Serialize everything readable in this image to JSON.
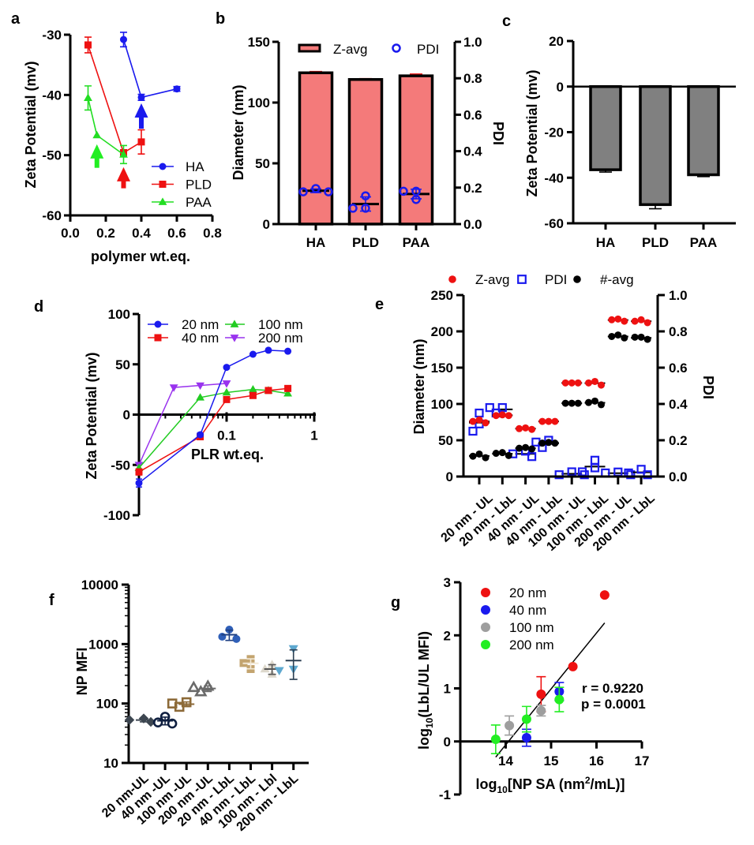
{
  "chart_data": [
    {
      "panel": "a",
      "type": "line",
      "title": "",
      "xlabel": "polymer wt.eq.",
      "ylabel": "Zeta Potential (mv)",
      "xlim": [
        0,
        0.8
      ],
      "ylim": [
        -60,
        -30
      ],
      "xticks": [
        0,
        0.2,
        0.4,
        0.6,
        0.8
      ],
      "xtick_labels": [
        "0.0",
        "0.2",
        "0.4",
        "0.6",
        "0.8"
      ],
      "yticks": [
        -30,
        -40,
        -50,
        -60
      ],
      "ytick_labels": [
        "-30",
        "-40",
        "-50",
        "-60"
      ],
      "grid": false,
      "legend_position": "bottom-right",
      "series": [
        {
          "name": "HA",
          "color": "#1a1aee",
          "marker": "circle",
          "x": [
            0.3,
            0.4,
            0.6
          ],
          "y": [
            -30.8,
            -40.4,
            -39.0
          ],
          "error": [
            1.2,
            0.5,
            0.4
          ]
        },
        {
          "name": "PLD",
          "color": "#ee1111",
          "marker": "square",
          "x": [
            0.1,
            0.3,
            0.4
          ],
          "y": [
            -31.7,
            -49.6,
            -47.8
          ],
          "error": [
            1.3,
            0.5,
            2.0
          ]
        },
        {
          "name": "PAA",
          "color": "#22dd22",
          "marker": "triangle",
          "x": [
            0.1,
            0.15,
            0.3
          ],
          "y": [
            -40.5,
            -46.7,
            -49.9
          ],
          "error": [
            2.0,
            0,
            1.5
          ]
        }
      ],
      "annotations": [
        {
          "type": "arrow",
          "direction": "up",
          "color": "#22ee22",
          "x": 0.15,
          "y_from": -52.1,
          "y_to": -48.2
        },
        {
          "type": "arrow",
          "direction": "up",
          "color": "#ee1111",
          "x": 0.3,
          "y_from": -55.5,
          "y_to": -52.0
        },
        {
          "type": "arrow",
          "direction": "up",
          "color": "#1a1aee",
          "x": 0.4,
          "y_from": -45.6,
          "y_to": -41.4
        }
      ]
    },
    {
      "panel": "b",
      "type": "bar",
      "title": "",
      "xlabel": "",
      "ylabel": "Diameter (nm)",
      "y2label": "PDI",
      "categories": [
        "HA",
        "PLD",
        "PAA"
      ],
      "ylim": [
        0,
        150
      ],
      "y2lim": [
        0,
        1.0
      ],
      "yticks": [
        0,
        50,
        100,
        150
      ],
      "ytick_labels": [
        "0",
        "50",
        "100",
        "150"
      ],
      "y2ticks": [
        0,
        0.2,
        0.4,
        0.6,
        0.8,
        1.0
      ],
      "y2tick_labels": [
        "0.0",
        "0.2",
        "0.4",
        "0.6",
        "0.8",
        "1.0"
      ],
      "grid": false,
      "legend_position": "top",
      "series": [
        {
          "name": "Z-avg",
          "type": "bar",
          "axis": "left",
          "color": "#f47a7a",
          "error_color": "#ee2222",
          "values": [
            124.5,
            119.0,
            122.0
          ],
          "error": [
            1.0,
            0.7,
            1.5
          ]
        },
        {
          "name": "PDI",
          "type": "scatter",
          "axis": "right",
          "color": "#1a1aee",
          "marker": "open-circle",
          "replicates": [
            [
              0.177,
              0.195,
              0.177
            ],
            [
              0.155,
              0.087,
              0.087
            ],
            [
              0.18,
              0.135,
              0.18
            ]
          ],
          "mean": [
            0.183,
            0.11,
            0.165
          ],
          "error": [
            0.01,
            0.039,
            0.026
          ]
        }
      ]
    },
    {
      "panel": "c",
      "type": "bar",
      "title": "",
      "xlabel": "",
      "ylabel": "Zeta Potential (mv)",
      "categories": [
        "HA",
        "PLD",
        "PAA"
      ],
      "ylim": [
        -60,
        20
      ],
      "yticks": [
        20,
        0,
        -20,
        -40,
        -60
      ],
      "ytick_labels": [
        "20",
        "0",
        "-20",
        "-40",
        "-60"
      ],
      "grid": false,
      "series": [
        {
          "name": "Zeta Potential",
          "color": "#808080",
          "values": [
            -36.5,
            -51.8,
            -38.7
          ],
          "error": [
            1.0,
            1.8,
            0.8
          ]
        }
      ]
    },
    {
      "panel": "d",
      "type": "line",
      "title": "",
      "xlabel": "PLR wt.eq.",
      "ylabel": "Zeta Potential (mv)",
      "xscale": "log",
      "xlim": [
        0.01,
        1
      ],
      "ylim": [
        -100,
        100
      ],
      "xticks": [
        0.1,
        1
      ],
      "xtick_labels": [
        "0.1",
        "1"
      ],
      "yticks": [
        100,
        50,
        0,
        -50,
        -100
      ],
      "ytick_labels": [
        "100",
        "50",
        "0",
        "-50",
        "-100"
      ],
      "grid": false,
      "legend_position": "top",
      "series": [
        {
          "name": "20 nm",
          "color": "#1a1aee",
          "marker": "circle",
          "x": [
            0.01,
            0.05,
            0.1,
            0.2,
            0.3,
            0.5
          ],
          "y": [
            -68,
            -20,
            47,
            60,
            64,
            63
          ],
          "error": [
            4,
            2,
            0,
            0,
            0,
            0
          ]
        },
        {
          "name": "40 nm",
          "color": "#ee1111",
          "marker": "square",
          "x": [
            0.01,
            0.05,
            0.1,
            0.2,
            0.3,
            0.5
          ],
          "y": [
            -57,
            -22,
            15,
            19,
            24,
            26
          ],
          "error": [
            3,
            2,
            0,
            0,
            0,
            2
          ]
        },
        {
          "name": "100 nm",
          "color": "#22cc22",
          "marker": "triangle",
          "x": [
            0.01,
            0.05,
            0.1,
            0.2,
            0.3,
            0.5
          ],
          "y": [
            -53,
            17,
            22,
            25,
            24,
            21
          ],
          "error": [
            0,
            0,
            0,
            0,
            0,
            0
          ]
        },
        {
          "name": "200 nm",
          "color": "#9933ee",
          "marker": "triangle-down",
          "x": [
            0.01,
            0.025,
            0.05,
            0.1
          ],
          "y": [
            -50,
            27,
            29,
            31
          ],
          "error": [
            0,
            0,
            0,
            0
          ]
        }
      ]
    },
    {
      "panel": "e",
      "type": "scatter",
      "title": "",
      "xlabel": "",
      "ylabel": "Diameter  (nm)",
      "y2label": "PDI",
      "categories": [
        "20 nm - UL",
        "20 nm - LbL",
        "40 nm - UL",
        "40 nm - LbL",
        "100 nm - UL",
        "100 nm - LbL",
        "200 nm - UL",
        "200 nm - LbL"
      ],
      "ylim": [
        0,
        250
      ],
      "y2lim": [
        0,
        1.0
      ],
      "yticks": [
        0,
        50,
        100,
        150,
        200,
        250
      ],
      "ytick_labels": [
        "0",
        "50",
        "100",
        "150",
        "200",
        "250"
      ],
      "y2ticks": [
        0,
        0.2,
        0.4,
        0.6,
        0.8,
        1.0
      ],
      "y2tick_labels": [
        "0.0",
        "0.2",
        "0.4",
        "0.6",
        "0.8",
        "1.0"
      ],
      "grid": false,
      "legend_position": "top",
      "series": [
        {
          "name": "Z-avg",
          "axis": "left",
          "color": "#ee1111",
          "marker": "circle",
          "replicates": [
            [
              76,
              74,
              78
            ],
            [
              84,
              84,
              85
            ],
            [
              66,
              65,
              67
            ],
            [
              76,
              76,
              76
            ],
            [
              129,
              129,
              129
            ],
            [
              129,
              126,
              131
            ],
            [
              216,
              217,
              214
            ],
            [
              214,
              212,
              216
            ]
          ]
        },
        {
          "name": "PDI",
          "axis": "right",
          "color": "#1a1aee",
          "marker": "open-square",
          "replicates": [
            [
              0.35,
              0.25,
              0.29
            ],
            [
              0.38,
              0.35,
              0.38
            ],
            [
              0.11,
              0.125,
              0.14
            ],
            [
              0.2,
              0.16,
              0.19
            ],
            [
              0.01,
              0.026,
              0.01
            ],
            [
              0.09,
              0.026,
              0.048
            ],
            [
              0.01,
              0.025,
              0.02
            ],
            [
              0.01,
              0.04,
              0.02
            ]
          ]
        },
        {
          "name": "#-avg",
          "axis": "left",
          "color": "#000000",
          "marker": "circle",
          "replicates": [
            [
              26,
              31,
              28
            ],
            [
              29,
              33,
              32
            ],
            [
              38,
              39,
              40
            ],
            [
              46,
              46,
              47
            ],
            [
              101,
              101,
              101
            ],
            [
              102,
              99,
              104
            ],
            [
              195,
              191,
              193
            ],
            [
              192,
              189,
              192
            ]
          ]
        }
      ]
    },
    {
      "panel": "f",
      "type": "scatter",
      "title": "",
      "xlabel": "",
      "ylabel": "NP MFI",
      "yscale": "log",
      "ylim": [
        10,
        10000
      ],
      "yticks": [
        10,
        100,
        1000,
        10000
      ],
      "ytick_labels": [
        "10",
        "100",
        "1000",
        "10000"
      ],
      "grid": false,
      "categories": [
        "20 nm-UL",
        "40 nm -UL",
        "100 nm -UL",
        "200 nm -UL",
        "20 nm - LbL",
        "40 nm - LbL",
        "100 nm - Lbl",
        "200 nm - LbL"
      ],
      "groups": [
        {
          "color": "#3d4650",
          "error_color": "#3d4650",
          "marker": "diamond",
          "values": [
            49,
            56,
            53
          ]
        },
        {
          "color": "#0f1f40",
          "error_color": "#0f1f40",
          "marker": "open-circle",
          "values": [
            60,
            46,
            48
          ]
        },
        {
          "color": "#8c6a38",
          "error_color": "#8c6a38",
          "marker": "open-square",
          "values": [
            88,
            105,
            100
          ]
        },
        {
          "color": "#6a6a6a",
          "error_color": "#6a6a6a",
          "marker": "open-triangle",
          "values": [
            157,
            194,
            185
          ]
        },
        {
          "color": "#2f5fb8",
          "error_color": "#1e3f80",
          "marker": "circle",
          "values": [
            1750,
            1220,
            1330
          ]
        },
        {
          "color": "#c3a46f",
          "error_color": "#f2e8d6",
          "marker": "square",
          "values": [
            560,
            380,
            480
          ]
        },
        {
          "color": "#ddd8cc",
          "error_color": "#555555",
          "marker": "triangle",
          "values": [
            450,
            310,
            380
          ]
        },
        {
          "color": "#5ea8cf",
          "error_color": "#2b3f52",
          "marker": "triangle-down",
          "values": [
            840,
            380,
            360
          ]
        }
      ]
    },
    {
      "panel": "g",
      "type": "scatter",
      "title": "",
      "xlabel": {
        "base": "log",
        "sub": "10",
        "text": "[NP SA (nm",
        "sup": "2",
        "tail": "/mL)]"
      },
      "ylabel": {
        "base": "log",
        "sub": "10",
        "text": "(LbL/UL MFI)"
      },
      "xlim": [
        13,
        17
      ],
      "ylim": [
        -1,
        3
      ],
      "xticks": [
        14,
        15,
        16,
        17
      ],
      "xtick_labels": [
        "14",
        "15",
        "16",
        "17"
      ],
      "yticks": [
        3,
        2,
        1,
        0,
        -1
      ],
      "ytick_labels": [
        "3",
        "2",
        "1",
        "0",
        "-1"
      ],
      "grid": false,
      "legend_position": "top-left",
      "series": [
        {
          "name": "20 nm",
          "color": "#ee1111",
          "x": [
            14.78,
            15.48,
            16.18
          ],
          "y": [
            0.89,
            1.41,
            2.76
          ],
          "error": [
            0.33,
            0,
            0
          ]
        },
        {
          "name": "40 nm",
          "color": "#1a1aee",
          "x": [
            14.46,
            15.18
          ],
          "y": [
            0.07,
            0.94
          ],
          "error": [
            0.16,
            0.17
          ]
        },
        {
          "name": "100 nm",
          "color": "#9e9e9e",
          "x": [
            14.08,
            14.78
          ],
          "y": [
            0.3,
            0.58
          ],
          "error": [
            0.18,
            0.1
          ]
        },
        {
          "name": "200 nm",
          "color": "#22ee22",
          "x": [
            13.78,
            14.46,
            15.18
          ],
          "y": [
            0.04,
            0.42,
            0.79
          ],
          "error": [
            0.27,
            0.24,
            0.23
          ]
        }
      ],
      "fit": {
        "type": "linear",
        "slope": 1.054,
        "intercept": -14.82,
        "x_range": [
          13.78,
          16.18
        ],
        "color": "#000000"
      },
      "annotations": [
        {
          "text": "r = 0.9220"
        },
        {
          "text": "p = 0.0001"
        }
      ]
    }
  ]
}
